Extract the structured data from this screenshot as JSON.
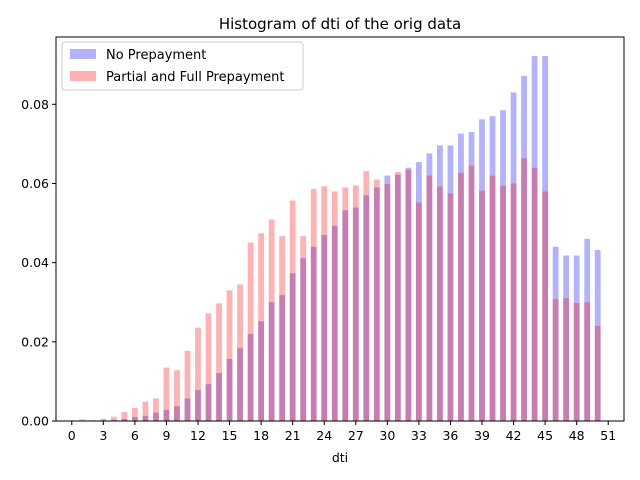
{
  "chart_data": {
    "type": "bar",
    "title": "Histogram of dti of the orig data",
    "xlabel": "dti",
    "ylabel": "",
    "xlim": [
      -1.5,
      52.5
    ],
    "ylim": [
      0,
      0.097
    ],
    "x_ticks": [
      0,
      3,
      6,
      9,
      12,
      15,
      18,
      21,
      24,
      27,
      30,
      33,
      36,
      39,
      42,
      45,
      48,
      51
    ],
    "y_ticks": [
      0.0,
      0.02,
      0.04,
      0.06,
      0.08
    ],
    "y_tick_labels": [
      "0.00",
      "0.02",
      "0.04",
      "0.06",
      "0.08"
    ],
    "bar_width": 0.55,
    "grid": false,
    "legend_placement": "top-left",
    "series": [
      {
        "name": "No Prepayment",
        "color": "#0000ff",
        "alpha": 0.3,
        "x": [
          0,
          1,
          2,
          3,
          4,
          5,
          6,
          7,
          8,
          9,
          10,
          11,
          12,
          13,
          14,
          15,
          16,
          17,
          18,
          19,
          20,
          21,
          22,
          23,
          24,
          25,
          26,
          27,
          28,
          29,
          30,
          31,
          32,
          33,
          34,
          35,
          36,
          37,
          38,
          39,
          40,
          41,
          42,
          43,
          44,
          45,
          46,
          47,
          48,
          49,
          50
        ],
        "values": [
          0.0,
          0.0001,
          0.0002,
          0.0002,
          0.0003,
          0.0005,
          0.001,
          0.0013,
          0.0021,
          0.0028,
          0.0037,
          0.0057,
          0.0078,
          0.0093,
          0.0121,
          0.0157,
          0.0184,
          0.022,
          0.0252,
          0.03,
          0.0318,
          0.0373,
          0.0411,
          0.044,
          0.047,
          0.0493,
          0.0532,
          0.0539,
          0.057,
          0.059,
          0.062,
          0.0622,
          0.064,
          0.0654,
          0.0676,
          0.0696,
          0.0696,
          0.0726,
          0.073,
          0.0762,
          0.077,
          0.0785,
          0.083,
          0.0872,
          0.0922,
          0.0922,
          0.044,
          0.0418,
          0.0418,
          0.046,
          0.0432
        ]
      },
      {
        "name": "Partial and Full Prepayment",
        "color": "#ff0000",
        "alpha": 0.3,
        "x": [
          0,
          1,
          2,
          3,
          4,
          5,
          6,
          7,
          8,
          9,
          10,
          11,
          12,
          13,
          14,
          15,
          16,
          17,
          18,
          19,
          20,
          21,
          22,
          23,
          24,
          25,
          26,
          27,
          28,
          29,
          30,
          31,
          32,
          33,
          34,
          35,
          36,
          37,
          38,
          39,
          40,
          41,
          42,
          43,
          44,
          45,
          46,
          47,
          48,
          49,
          50
        ],
        "values": [
          0.0,
          0.0004,
          0.0001,
          0.0006,
          0.0011,
          0.0023,
          0.0033,
          0.0049,
          0.0057,
          0.0135,
          0.0128,
          0.0177,
          0.0236,
          0.0272,
          0.0297,
          0.033,
          0.0345,
          0.0451,
          0.0474,
          0.0509,
          0.0467,
          0.0557,
          0.0467,
          0.0586,
          0.0593,
          0.058,
          0.059,
          0.0595,
          0.0631,
          0.061,
          0.0599,
          0.0629,
          0.0634,
          0.0552,
          0.062,
          0.0592,
          0.0575,
          0.0627,
          0.0645,
          0.0582,
          0.062,
          0.0594,
          0.06,
          0.0664,
          0.064,
          0.058,
          0.0308,
          0.031,
          0.0298,
          0.03,
          0.024
        ]
      }
    ]
  }
}
